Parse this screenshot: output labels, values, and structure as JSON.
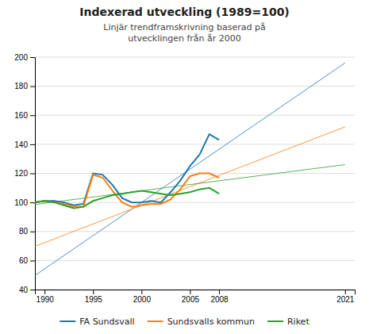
{
  "chart_data": {
    "type": "line",
    "title": "Indexerad utveckling (1989=100)",
    "subtitle": [
      "Linjär trendframskrivning baserad på",
      "utvecklingen från år 2000"
    ],
    "x": [
      1989,
      1990,
      1991,
      1992,
      1993,
      1994,
      1995,
      1996,
      1997,
      1998,
      1999,
      2000,
      2001,
      2002,
      2003,
      2004,
      2005,
      2006,
      2007,
      2008
    ],
    "series": [
      {
        "name": "FA Sundsvall",
        "values": [
          100,
          101,
          101,
          100,
          98,
          99,
          120,
          119,
          112,
          103,
          100,
          100,
          101,
          100,
          107,
          115,
          125,
          133,
          147,
          143
        ],
        "trend": {
          "x": [
            1989,
            2021
          ],
          "values": [
            49.71428571428572,
            196
          ]
        }
      },
      {
        "name": "Sundsvalls kommun",
        "values": [
          100,
          101,
          100,
          99,
          97,
          97,
          119,
          117,
          108,
          100,
          97,
          98,
          99,
          99,
          102,
          109,
          118,
          120,
          120,
          117
        ],
        "trend": {
          "x": [
            1989,
            2021
          ],
          "values": [
            69.71428571428572,
            152
          ]
        }
      },
      {
        "name": "Riket",
        "values": [
          100,
          101,
          100,
          98,
          96,
          97,
          101,
          103,
          105,
          106,
          107,
          108,
          107,
          106,
          105,
          106,
          107,
          109,
          110,
          106
        ],
        "trend": {
          "x": [
            1989,
            2021
          ],
          "values": [
            98.57142857142857,
            126
          ]
        }
      }
    ],
    "xlim": [
      1989,
      2022
    ],
    "xticks": [
      1990,
      1995,
      2000,
      2005,
      2008,
      2021
    ],
    "ylim": [
      40,
      200
    ],
    "yticks": [
      40,
      60,
      80,
      100,
      120,
      140,
      160,
      180,
      200
    ],
    "grid": true
  }
}
